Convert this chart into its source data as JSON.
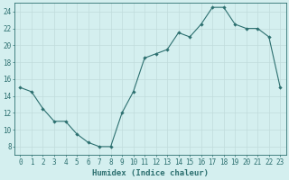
{
  "xlabel": "Humidex (Indice chaleur)",
  "x": [
    0,
    1,
    2,
    3,
    4,
    5,
    6,
    7,
    8,
    9,
    10,
    11,
    12,
    13,
    14,
    15,
    16,
    17,
    18,
    19,
    20,
    21,
    22,
    23
  ],
  "y": [
    15,
    14.5,
    12.5,
    11,
    11,
    9.5,
    8.5,
    8,
    8,
    12,
    14.5,
    18.5,
    19,
    19.5,
    21.5,
    21,
    22.5,
    24.5,
    24.5,
    22.5,
    22,
    22,
    21,
    15
  ],
  "line_color": "#2d7070",
  "marker": "D",
  "marker_size": 2.2,
  "background_color": "#d4efef",
  "grid_color": "#c0dcdc",
  "ylim": [
    7,
    25
  ],
  "xlim": [
    -0.5,
    23.5
  ],
  "yticks": [
    8,
    10,
    12,
    14,
    16,
    18,
    20,
    22,
    24
  ],
  "xtick_labels": [
    "0",
    "1",
    "2",
    "3",
    "4",
    "5",
    "6",
    "7",
    "8",
    "9",
    "10",
    "11",
    "12",
    "13",
    "14",
    "15",
    "16",
    "17",
    "18",
    "19",
    "20",
    "21",
    "22",
    "23"
  ],
  "tick_color": "#2d7070",
  "axis_color": "#2d7070",
  "label_fontsize": 6.5,
  "tick_fontsize": 5.5
}
